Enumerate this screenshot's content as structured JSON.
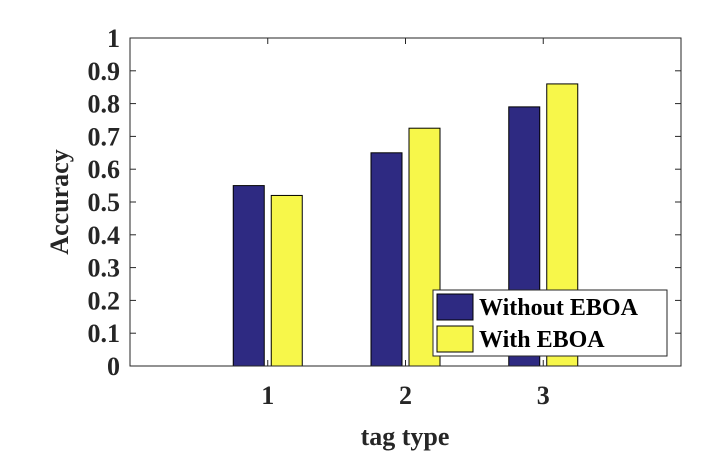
{
  "chart_data": {
    "type": "bar",
    "categories": [
      "1",
      "2",
      "3"
    ],
    "series": [
      {
        "name": "Without EBOA",
        "values": [
          0.55,
          0.65,
          0.79
        ],
        "color": "#2e2a82"
      },
      {
        "name": "With EBOA",
        "values": [
          0.52,
          0.725,
          0.86
        ],
        "color": "#f7f74a"
      }
    ],
    "title": "",
    "xlabel": "tag type",
    "ylabel": "Accuracy",
    "xlim": [
      0,
      4
    ],
    "ylim": [
      0,
      1
    ],
    "yticks": [
      "0",
      "0.1",
      "0.2",
      "0.3",
      "0.4",
      "0.5",
      "0.6",
      "0.7",
      "0.8",
      "0.9",
      "1"
    ],
    "grid": false,
    "legend_position": "bottom-right"
  }
}
